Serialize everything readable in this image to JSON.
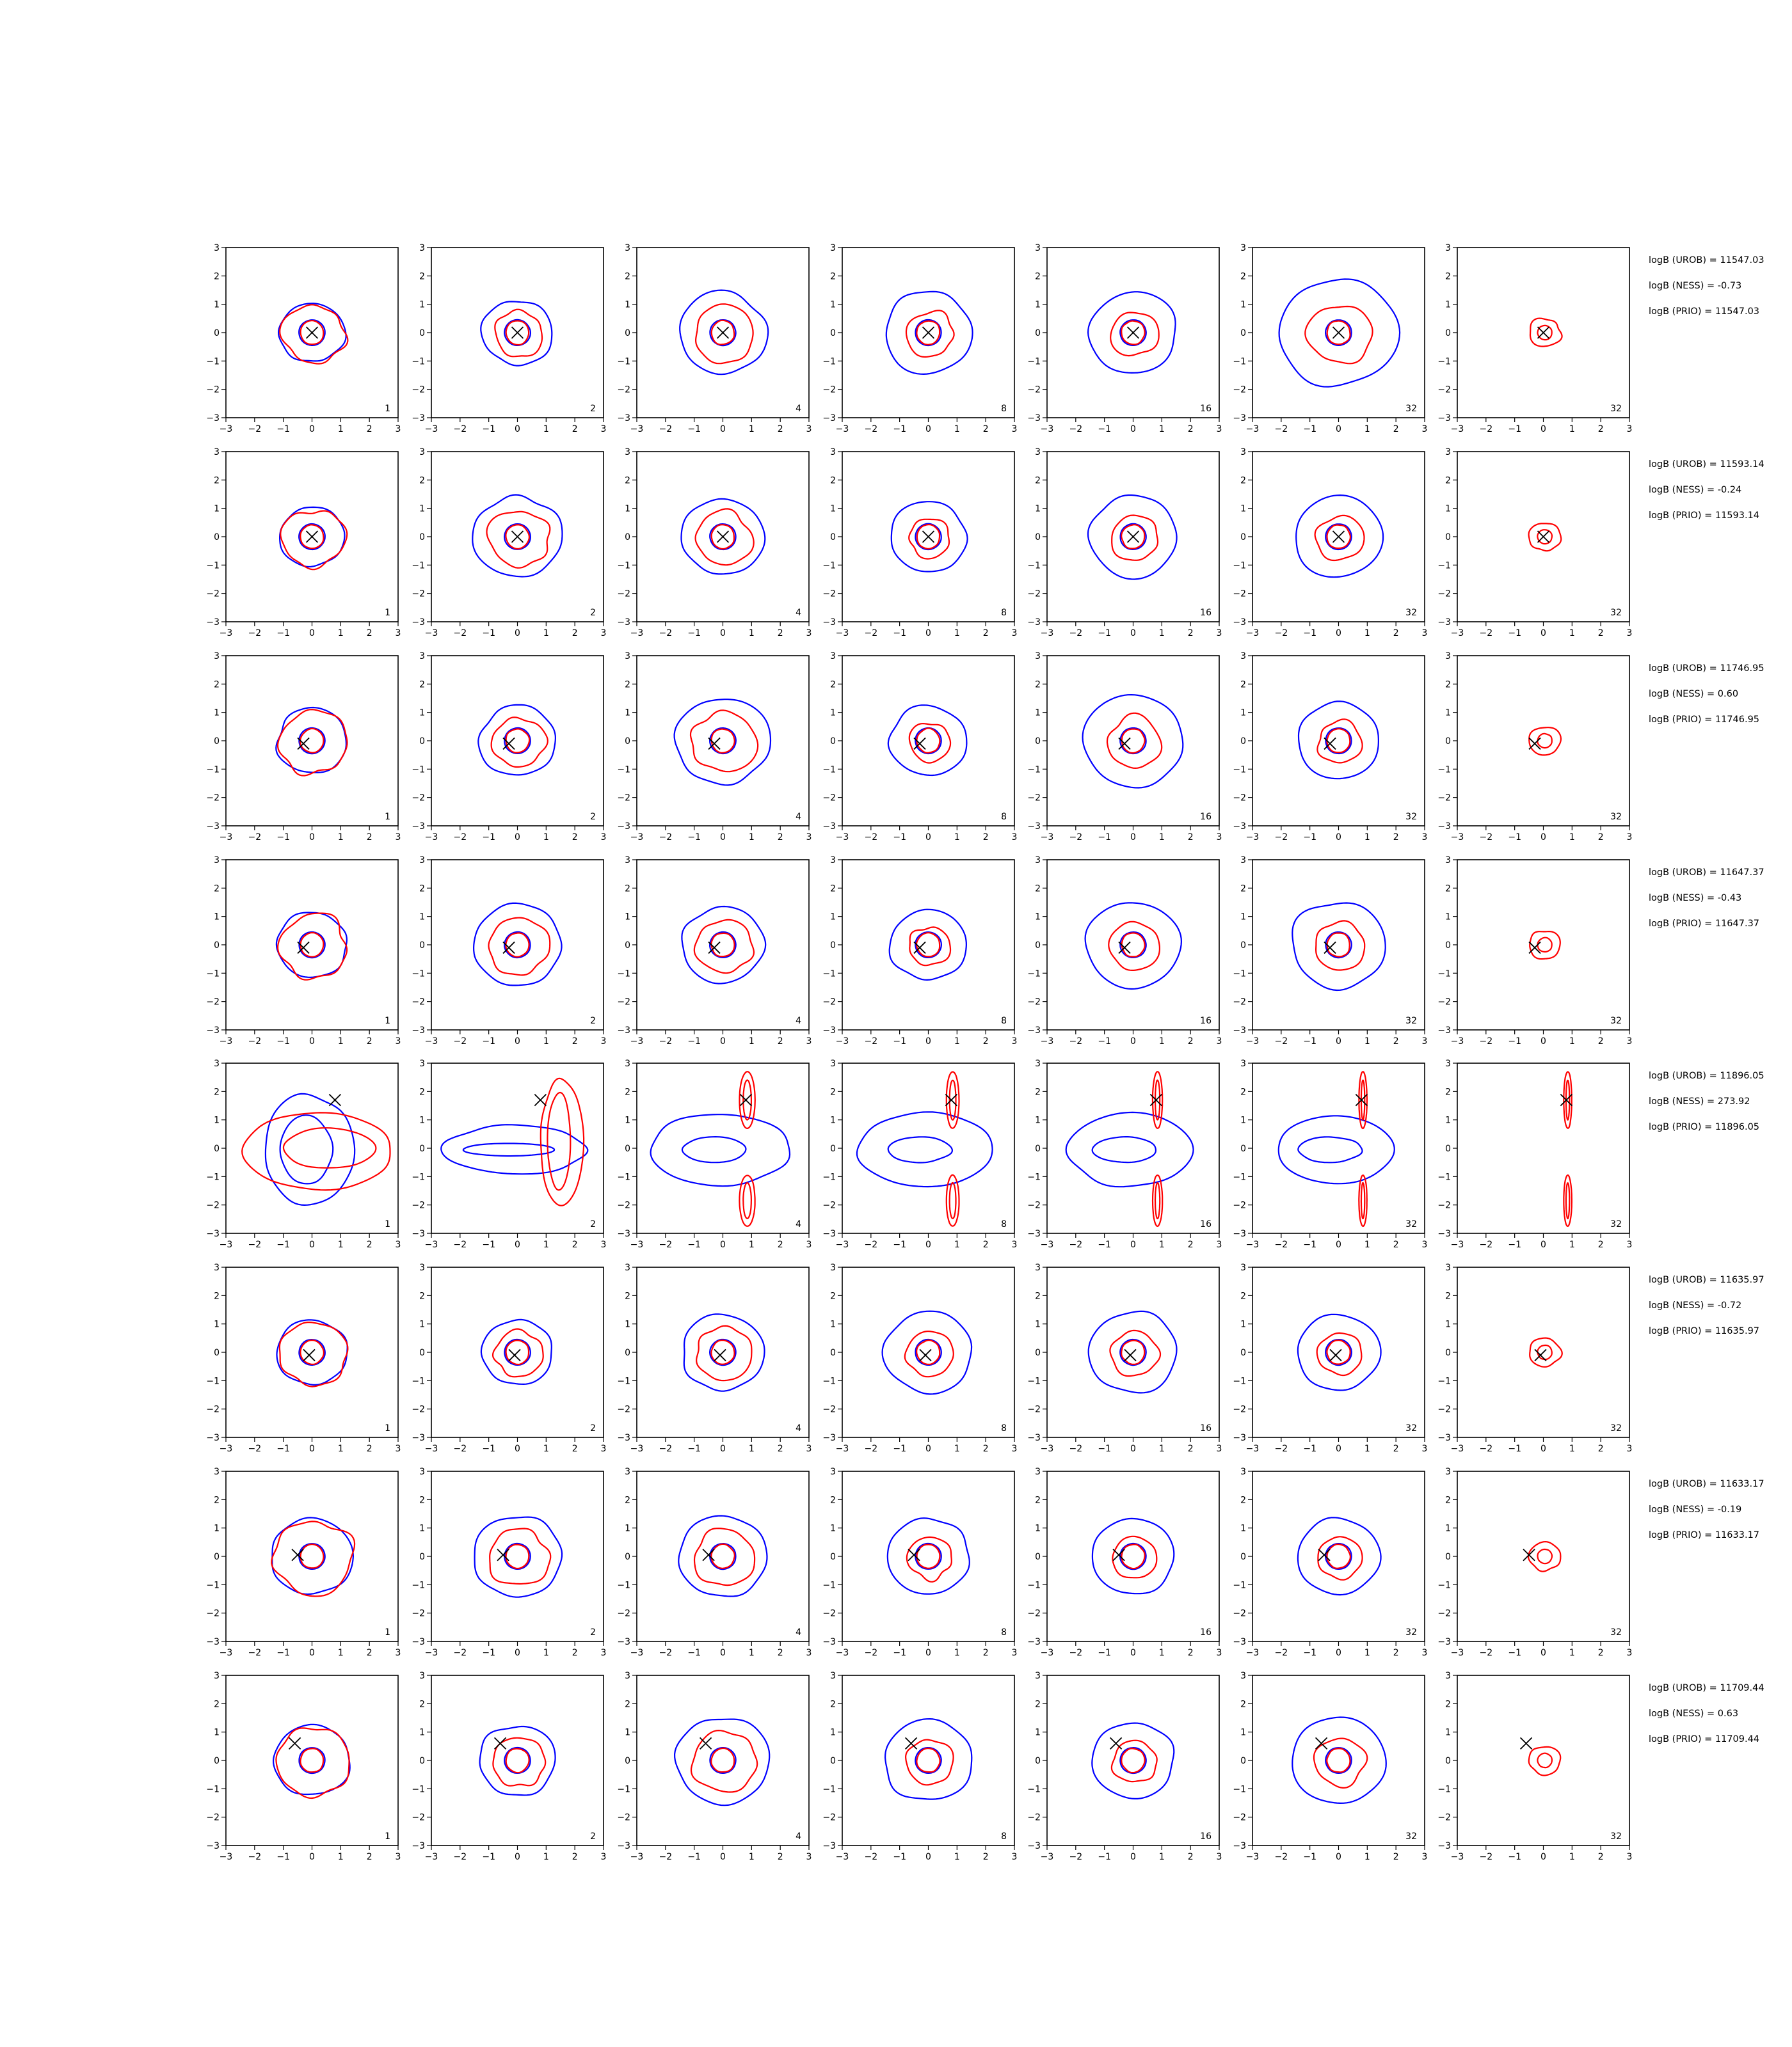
{
  "colors": {
    "blue": "#0000ff",
    "red": "#ff0000",
    "marker": "#000000"
  },
  "chart_data": {
    "type": "contour-grid",
    "rows": 8,
    "cols": 7,
    "xlim": [
      -3,
      3
    ],
    "ylim": [
      -3,
      3
    ],
    "ticks": [
      -3,
      -2,
      -1,
      0,
      1,
      2,
      3
    ],
    "tick_labels": [
      "−3",
      "−2",
      "−1",
      "0",
      "1",
      "2",
      "3"
    ],
    "panel_labels": [
      "1",
      "2",
      "4",
      "8",
      "16",
      "32",
      "32"
    ],
    "row_annotations": [
      [
        "logB (UROB) = 11547.03",
        "logB (NESS) = -0.73",
        "logB (PRIO) = 11547.03"
      ],
      [
        "logB (UROB) = 11593.14",
        "logB (NESS) = -0.24",
        "logB (PRIO) = 11593.14"
      ],
      [
        "logB (UROB) = 11746.95",
        "logB (NESS) = 0.60",
        "logB (PRIO) = 11746.95"
      ],
      [
        "logB (UROB) = 11647.37",
        "logB (NESS) = -0.43",
        "logB (PRIO) = 11647.37"
      ],
      [
        "logB (UROB) = 11896.05",
        "logB (NESS) = 273.92",
        "logB (PRIO) = 11896.05"
      ],
      [
        "logB (UROB) = 11635.97",
        "logB (NESS) = -0.72",
        "logB (PRIO) = 11635.97"
      ],
      [
        "logB (UROB) = 11633.17",
        "logB (NESS) = -0.19",
        "logB (PRIO) = 11633.17"
      ],
      [
        "logB (UROB) = 11709.44",
        "logB (NESS) = 0.63",
        "logB (PRIO) = 11709.44"
      ]
    ],
    "markers": [
      [
        0.0,
        0.0
      ],
      [
        0.0,
        0.0
      ],
      [
        -0.3,
        -0.1
      ],
      [
        -0.3,
        -0.1
      ],
      [
        0.8,
        1.7
      ],
      [
        -0.1,
        -0.1
      ],
      [
        -0.5,
        0.05
      ],
      [
        -0.6,
        0.6
      ]
    ],
    "blue_outer_radius": [
      [
        1.1,
        1.2,
        1.5,
        1.5,
        1.5,
        2.0,
        null
      ],
      [
        1.1,
        1.5,
        1.4,
        1.3,
        1.5,
        1.5,
        null
      ],
      [
        1.2,
        1.3,
        1.6,
        1.3,
        1.7,
        1.4,
        null
      ],
      [
        1.2,
        1.5,
        1.4,
        1.3,
        1.6,
        1.6,
        null
      ],
      [
        2.0,
        2.4,
        2.4,
        2.3,
        2.3,
        2.1,
        null
      ],
      [
        1.2,
        1.2,
        1.4,
        1.5,
        1.5,
        1.4,
        null
      ],
      [
        1.4,
        1.5,
        1.5,
        1.4,
        1.4,
        1.4,
        null
      ],
      [
        1.3,
        1.3,
        1.6,
        1.5,
        1.4,
        1.6,
        null
      ]
    ]
  }
}
